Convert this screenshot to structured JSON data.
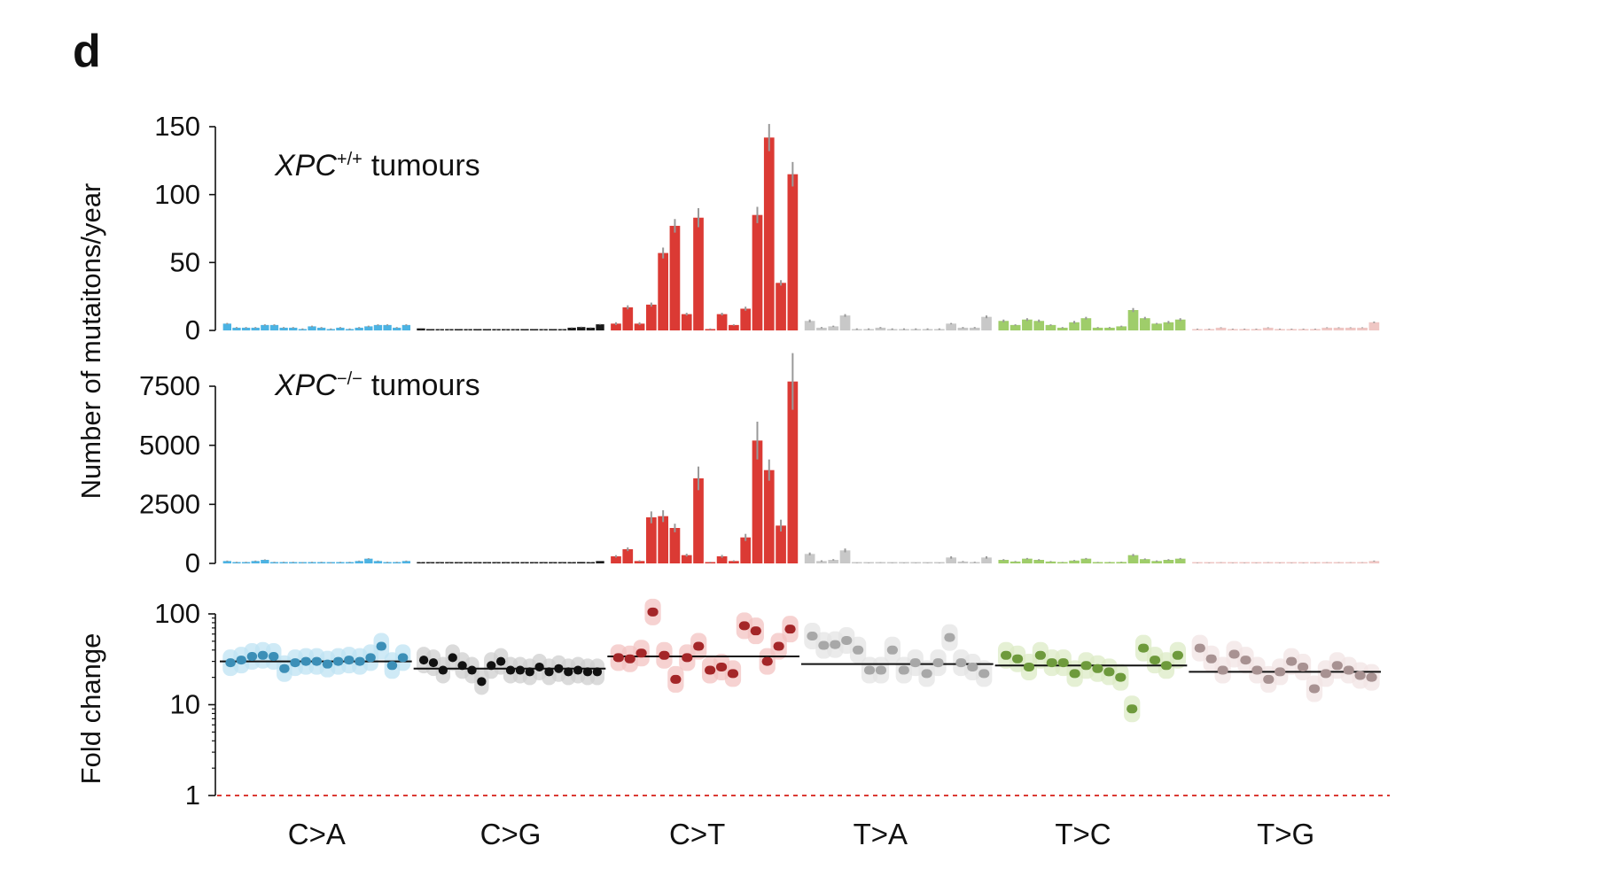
{
  "panel_label": "d",
  "categories": [
    "C>A",
    "C>G",
    "C>T",
    "T>A",
    "T>C",
    "T>G"
  ],
  "colors": {
    "bars": [
      "#4cb3e3",
      "#1a1a1a",
      "#db3a34",
      "#c8c8c8",
      "#9fcd6a",
      "#efc7c4"
    ],
    "fold": [
      "#3c8fb7",
      "#111111",
      "#a42628",
      "#a8a8a8",
      "#6e9a3c",
      "#a89292"
    ],
    "fold_halo": [
      "#bfe3f3",
      "#cfcfcf",
      "#f3c3c2",
      "#e4e4e4",
      "#dcebc6",
      "#f1e4e4"
    ],
    "errorbar": "#999999",
    "reference_line": "#db3a34"
  },
  "chart_data": [
    {
      "type": "bar",
      "annotation": {
        "gene": "XPC",
        "sup": "+/+",
        "text": "tumours"
      },
      "ylabel": "Number of mutaitons/year",
      "ylim": [
        0,
        150
      ],
      "yticks": [
        "150",
        "100",
        "50",
        "0"
      ],
      "ytick_values": [
        150,
        100,
        50,
        0
      ],
      "series": [
        {
          "category": "C>A",
          "values": [
            5,
            2,
            2,
            2,
            4,
            4,
            2,
            2,
            1,
            3,
            2,
            1,
            2,
            1,
            2,
            3,
            4,
            4,
            2,
            4
          ],
          "errors": [
            0.5,
            0.5,
            0.5,
            0.5,
            0.5,
            0.5,
            0.5,
            0.5,
            0.5,
            0.5,
            0.5,
            0.5,
            0.5,
            0.5,
            0.5,
            0.5,
            0.5,
            0.5,
            0.5,
            0.5
          ]
        },
        {
          "category": "C>G",
          "values": [
            1.5,
            1,
            0.5,
            0.5,
            1,
            0.5,
            1,
            1,
            0.5,
            0.5,
            0.5,
            1,
            1,
            0.5,
            1,
            0.5,
            2,
            2.5,
            2,
            4.5
          ],
          "errors": [
            0.3,
            0.3,
            0.3,
            0.3,
            0.3,
            0.3,
            0.3,
            0.3,
            0.3,
            0.3,
            0.3,
            0.3,
            0.3,
            0.3,
            0.3,
            0.3,
            0.3,
            0.3,
            0.3,
            0.3
          ]
        },
        {
          "category": "C>T",
          "values": [
            5,
            17,
            5,
            19,
            57,
            77,
            12,
            83,
            1,
            12,
            4,
            16,
            85,
            142,
            35,
            115
          ],
          "errors": [
            1,
            1.5,
            1,
            1.5,
            4,
            5,
            1,
            7,
            0.5,
            1,
            0.5,
            1.5,
            6,
            10,
            2,
            9
          ]
        },
        {
          "category": "T>A",
          "values": [
            7,
            2,
            3,
            11,
            1,
            1,
            2,
            1,
            1,
            1,
            1,
            1,
            5,
            2,
            2,
            10
          ],
          "errors": [
            1,
            0.5,
            0.5,
            1,
            0.5,
            0.5,
            0.5,
            0.5,
            0.5,
            0.5,
            0.5,
            0.5,
            0.5,
            0.5,
            0.5,
            1
          ]
        },
        {
          "category": "T>C",
          "values": [
            7,
            4,
            8,
            7,
            4,
            2,
            6,
            9,
            2,
            2,
            3,
            15,
            9,
            5,
            6,
            8
          ],
          "errors": [
            1,
            0.5,
            1,
            1,
            0.5,
            0.5,
            1,
            1,
            0.5,
            0.5,
            0.5,
            1.5,
            1,
            0.5,
            1,
            1
          ]
        },
        {
          "category": "T>G",
          "values": [
            1,
            1,
            2,
            1,
            1,
            1,
            2,
            1,
            1,
            1,
            1,
            2,
            2,
            2,
            2,
            6
          ],
          "errors": [
            0.3,
            0.3,
            0.3,
            0.3,
            0.3,
            0.3,
            0.3,
            0.3,
            0.3,
            0.3,
            0.3,
            0.3,
            0.3,
            0.3,
            0.3,
            0.5
          ]
        }
      ]
    },
    {
      "type": "bar",
      "annotation": {
        "gene": "XPC",
        "sup": "−/−",
        "text": "tumours"
      },
      "ylim": [
        0,
        7500
      ],
      "yticks": [
        "7500",
        "5000",
        "2500",
        "0"
      ],
      "ytick_values": [
        7500,
        5000,
        2500,
        0
      ],
      "series": [
        {
          "category": "C>A",
          "values": [
            100,
            50,
            50,
            100,
            150,
            50,
            50,
            50,
            30,
            50,
            50,
            20,
            50,
            50,
            100,
            200,
            100,
            50,
            50,
            100
          ],
          "errors": [
            20,
            20,
            20,
            20,
            20,
            20,
            20,
            20,
            20,
            20,
            20,
            20,
            20,
            20,
            20,
            20,
            20,
            20,
            20,
            20
          ]
        },
        {
          "category": "C>G",
          "values": [
            40,
            30,
            20,
            20,
            30,
            20,
            30,
            30,
            20,
            20,
            20,
            30,
            30,
            20,
            30,
            20,
            40,
            60,
            40,
            100
          ],
          "errors": [
            10,
            10,
            10,
            10,
            10,
            10,
            10,
            10,
            10,
            10,
            10,
            10,
            10,
            10,
            10,
            10,
            10,
            10,
            10,
            10
          ]
        },
        {
          "category": "C>T",
          "values": [
            300,
            600,
            100,
            1950,
            2000,
            1500,
            350,
            3600,
            50,
            300,
            100,
            1100,
            5200,
            3950,
            1600,
            7700
          ],
          "errors": [
            50,
            80,
            30,
            250,
            250,
            180,
            60,
            500,
            20,
            60,
            30,
            150,
            800,
            450,
            250,
            1200
          ]
        },
        {
          "category": "T>A",
          "values": [
            400,
            100,
            150,
            550,
            30,
            20,
            40,
            30,
            20,
            20,
            20,
            20,
            250,
            80,
            50,
            250
          ],
          "errors": [
            60,
            30,
            30,
            80,
            10,
            10,
            10,
            10,
            10,
            10,
            10,
            10,
            50,
            20,
            20,
            50
          ]
        },
        {
          "category": "T>C",
          "values": [
            150,
            80,
            200,
            150,
            80,
            50,
            120,
            200,
            50,
            50,
            60,
            350,
            180,
            100,
            150,
            200
          ],
          "errors": [
            30,
            20,
            30,
            30,
            20,
            15,
            25,
            30,
            15,
            15,
            15,
            50,
            30,
            25,
            30,
            30
          ]
        },
        {
          "category": "T>G",
          "values": [
            20,
            20,
            40,
            20,
            20,
            20,
            40,
            20,
            20,
            20,
            20,
            40,
            40,
            40,
            40,
            100
          ],
          "errors": [
            10,
            10,
            10,
            10,
            10,
            10,
            10,
            10,
            10,
            10,
            10,
            10,
            10,
            10,
            10,
            20
          ]
        }
      ]
    },
    {
      "type": "scatter",
      "ylabel": "Fold change",
      "yscale": "log",
      "ylim": [
        1,
        100
      ],
      "yticks": [
        "100",
        "10",
        "1"
      ],
      "ytick_values": [
        100,
        10,
        1
      ],
      "reference_line": 1,
      "series": [
        {
          "category": "C>A",
          "mean": 30,
          "values": [
            29,
            31,
            34,
            35,
            34,
            25,
            29,
            30,
            30,
            28,
            30,
            31,
            30,
            33,
            44,
            27,
            33
          ]
        },
        {
          "category": "C>G",
          "mean": 25,
          "values": [
            31,
            29,
            24,
            33,
            27,
            24,
            18,
            27,
            30,
            24,
            24,
            23,
            26,
            23,
            25,
            23,
            24,
            23,
            23
          ]
        },
        {
          "category": "C>T",
          "mean": 34,
          "values": [
            33,
            32,
            37,
            105,
            35,
            19,
            33,
            44,
            24,
            26,
            22,
            74,
            65,
            30,
            44,
            68
          ]
        },
        {
          "category": "T>A",
          "mean": 28,
          "values": [
            57,
            45,
            46,
            51,
            40,
            24,
            24,
            40,
            24,
            29,
            22,
            29,
            55,
            29,
            26,
            22
          ]
        },
        {
          "category": "T>C",
          "mean": 27,
          "values": [
            35,
            32,
            26,
            35,
            29,
            29,
            22,
            27,
            25,
            23,
            20,
            9,
            42,
            31,
            27,
            35
          ]
        },
        {
          "category": "T>G",
          "mean": 23,
          "values": [
            42,
            32,
            24,
            36,
            31,
            24,
            19,
            23,
            30,
            26,
            15,
            22,
            27,
            24,
            21,
            20
          ]
        }
      ]
    }
  ]
}
